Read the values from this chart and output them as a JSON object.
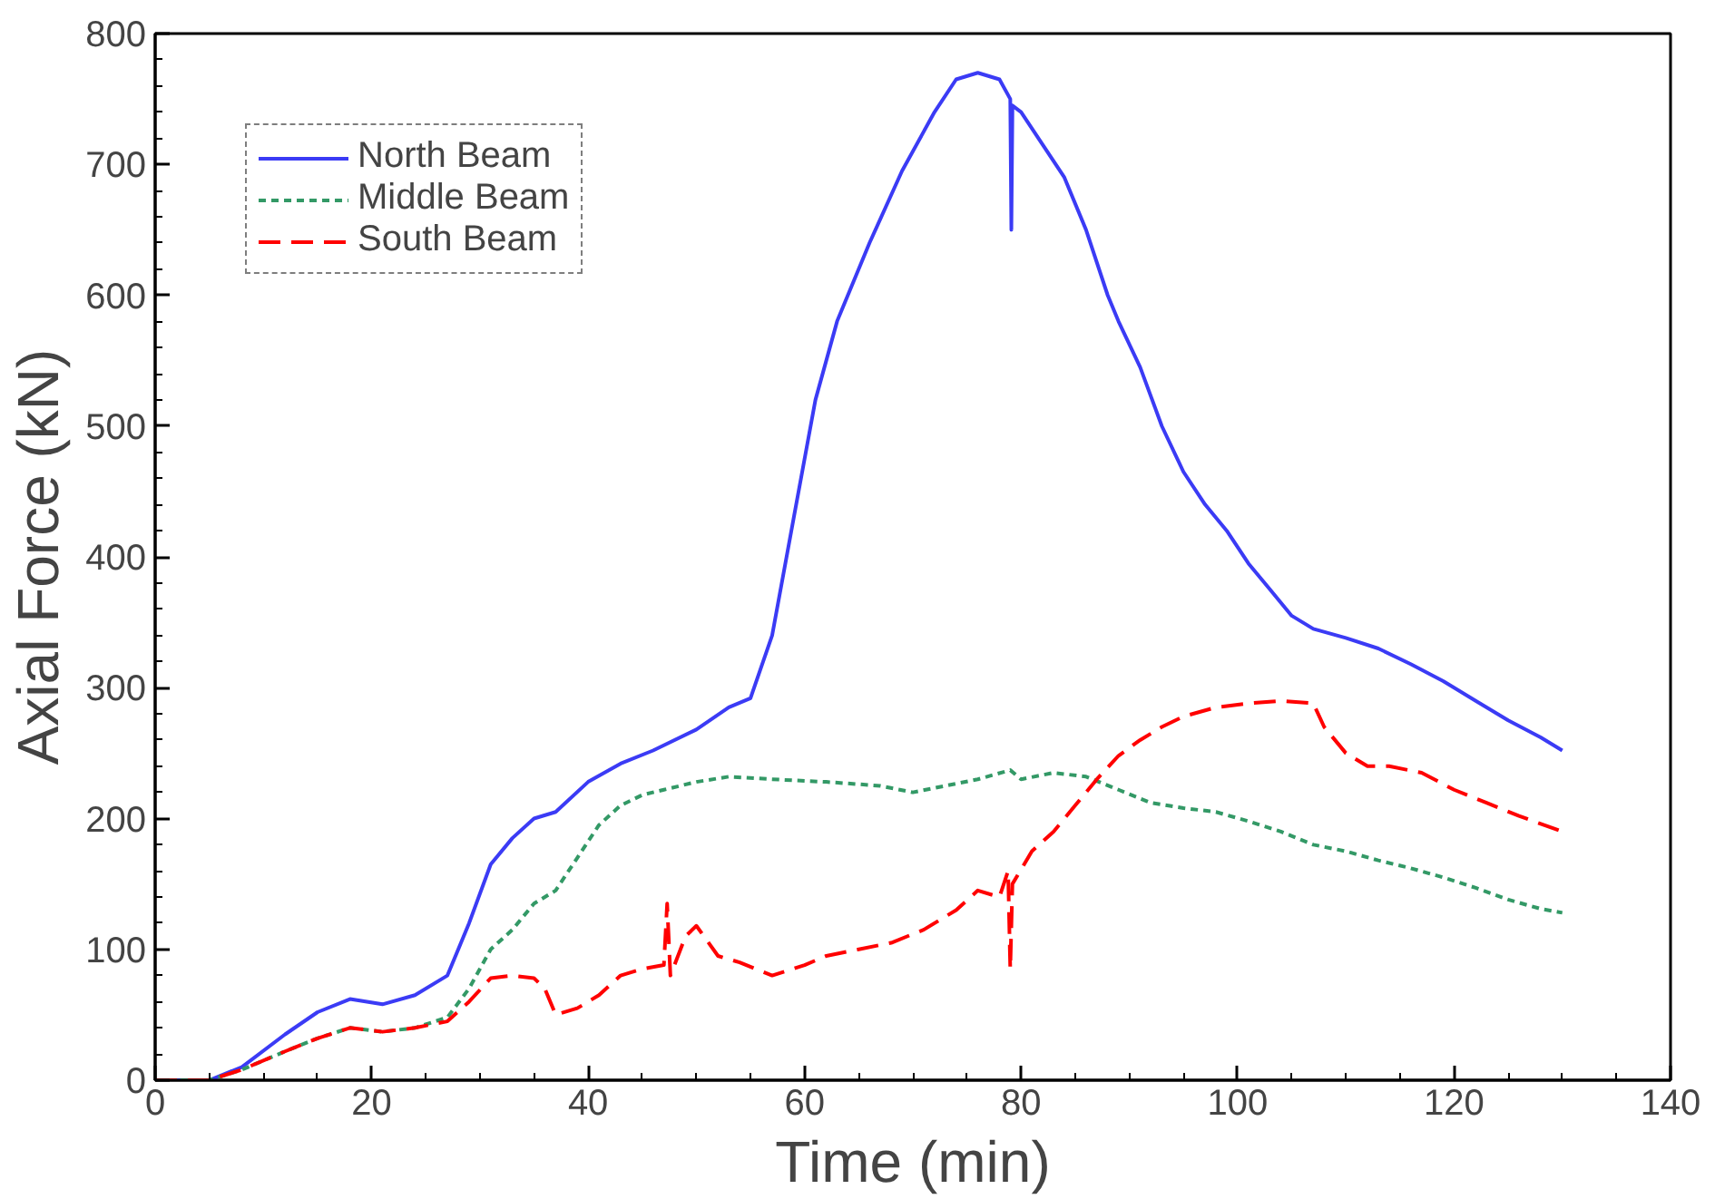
{
  "chart_data": {
    "type": "line",
    "xlabel": "Time (min)",
    "ylabel": "Axial Force (kN)",
    "xlim": [
      0,
      140
    ],
    "xticks": [
      0,
      20,
      40,
      60,
      80,
      100,
      120,
      140
    ],
    "ylim": [
      0,
      800
    ],
    "yticks": [
      0,
      100,
      200,
      300,
      400,
      500,
      600,
      700,
      800
    ],
    "grid": false,
    "legend": "top left",
    "marker": "none",
    "series": [
      {
        "name": "North Beam",
        "color": "#3b3bf5",
        "line_style": "solid",
        "x": [
          0,
          5,
          8,
          12,
          15,
          18,
          21,
          24,
          27,
          29,
          31,
          33,
          35,
          37,
          40,
          43,
          46,
          50,
          53,
          55,
          57,
          59,
          61,
          63,
          66,
          69,
          72,
          74,
          76,
          78,
          79,
          79.1,
          79.2,
          80,
          82,
          84,
          86,
          88,
          89,
          91,
          93,
          95,
          97,
          99,
          101,
          103,
          105,
          107,
          110,
          113,
          116,
          119,
          122,
          125,
          128,
          130
        ],
        "values": [
          0,
          0,
          10,
          35,
          52,
          62,
          58,
          65,
          80,
          120,
          165,
          185,
          200,
          205,
          228,
          242,
          252,
          268,
          285,
          292,
          340,
          430,
          520,
          580,
          640,
          695,
          740,
          765,
          770,
          765,
          750,
          650,
          745,
          740,
          715,
          690,
          650,
          600,
          580,
          545,
          500,
          465,
          440,
          420,
          395,
          375,
          355,
          345,
          338,
          330,
          318,
          305,
          290,
          275,
          262,
          252
        ]
      },
      {
        "name": "Middle Beam",
        "color": "#339966",
        "line_style": "dotted",
        "x": [
          0,
          5,
          8,
          12,
          15,
          18,
          21,
          24,
          27,
          29,
          31,
          33,
          35,
          37,
          39,
          41,
          43,
          45,
          47,
          50,
          53,
          57,
          62,
          67,
          70,
          73,
          76,
          79,
          80,
          83,
          86,
          89,
          92,
          95,
          98,
          101,
          104,
          107,
          110,
          113,
          116,
          119,
          122,
          125,
          128,
          130
        ],
        "values": [
          0,
          0,
          8,
          22,
          32,
          40,
          37,
          40,
          48,
          70,
          100,
          115,
          135,
          145,
          170,
          195,
          210,
          218,
          222,
          228,
          232,
          230,
          228,
          225,
          220,
          225,
          230,
          237,
          230,
          235,
          232,
          222,
          212,
          208,
          205,
          198,
          190,
          180,
          175,
          168,
          162,
          155,
          147,
          138,
          131,
          128
        ]
      },
      {
        "name": "South Beam",
        "color": "#ff0000",
        "line_style": "dashed",
        "x": [
          0,
          5,
          8,
          12,
          15,
          18,
          21,
          24,
          27,
          29,
          31,
          33,
          35,
          36,
          37,
          39,
          41,
          43,
          45,
          47,
          47.3,
          47.6,
          49,
          50,
          52,
          54,
          57,
          60,
          62,
          65,
          68,
          71,
          74,
          76,
          78,
          78.8,
          79,
          79.2,
          81,
          83,
          85,
          87,
          89,
          91,
          93,
          95,
          98,
          101,
          104,
          107,
          108,
          110,
          112,
          114,
          117,
          120,
          123,
          126,
          130
        ],
        "values": [
          0,
          0,
          8,
          22,
          32,
          40,
          37,
          40,
          45,
          60,
          78,
          80,
          78,
          70,
          50,
          55,
          65,
          80,
          85,
          88,
          135,
          80,
          110,
          118,
          95,
          90,
          80,
          88,
          95,
          100,
          105,
          115,
          130,
          145,
          140,
          160,
          85,
          150,
          175,
          190,
          210,
          230,
          248,
          260,
          270,
          278,
          285,
          288,
          290,
          288,
          270,
          250,
          240,
          240,
          235,
          222,
          212,
          202,
          190
        ]
      }
    ]
  }
}
